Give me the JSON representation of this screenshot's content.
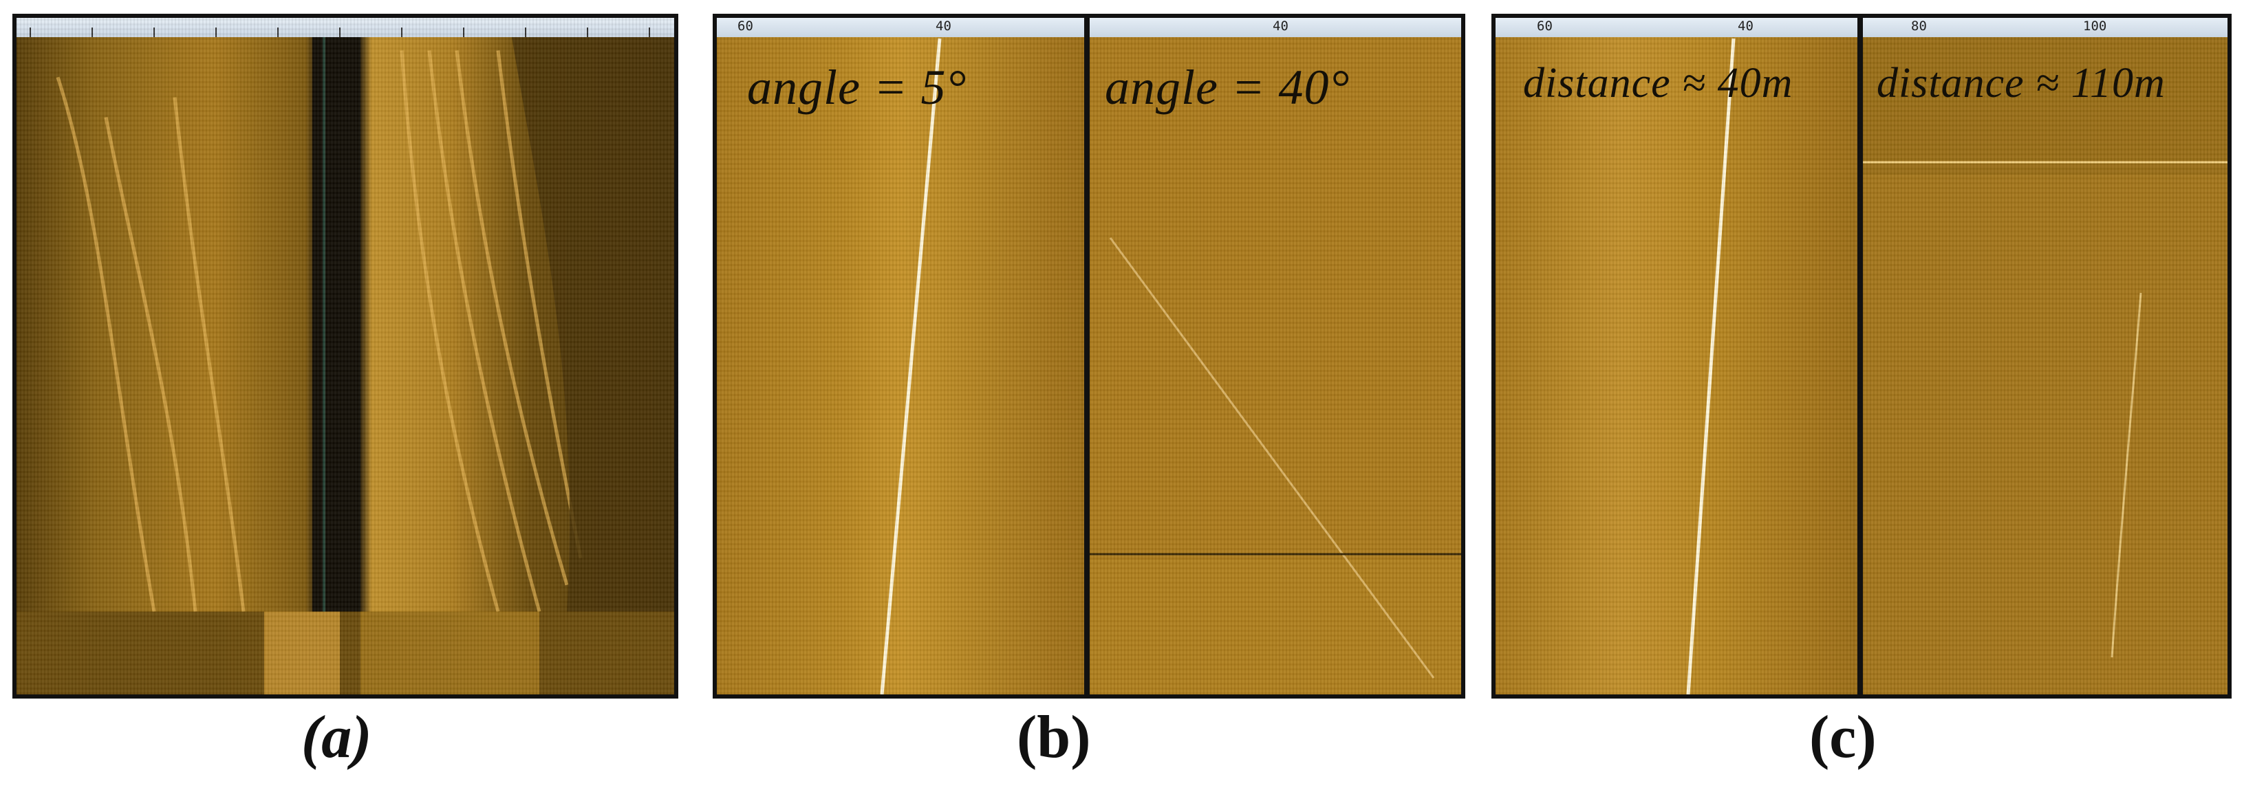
{
  "panels": {
    "a": {
      "caption": "(a)",
      "ruler_ticks": []
    },
    "b": {
      "caption": "(b)",
      "left": {
        "label": "angle = 5°",
        "ruler_ticks": [
          "60",
          "40"
        ]
      },
      "right": {
        "label": "angle = 40°",
        "ruler_ticks": [
          "40"
        ]
      }
    },
    "c": {
      "caption": "(c)",
      "left": {
        "label": "distance ≈ 40m",
        "ruler_ticks": [
          "60",
          "40"
        ]
      },
      "right": {
        "label": "distance ≈ 110m",
        "ruler_ticks": [
          "80",
          "100"
        ]
      }
    }
  },
  "colors": {
    "sonar_base": "#b9851f",
    "sonar_dark": "#6e5210",
    "trace": "#fff3c8",
    "frame": "#111111"
  }
}
